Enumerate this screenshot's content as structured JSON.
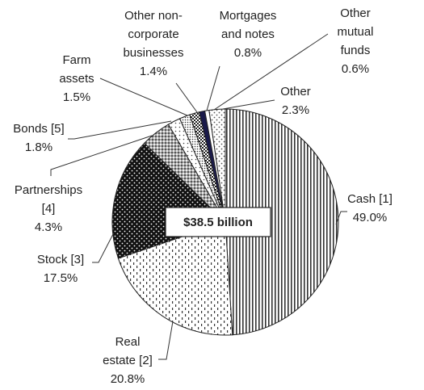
{
  "chart_data": {
    "type": "pie",
    "categories": [
      "Cash [1]",
      "Real\nestate [2]",
      "Stock [3]",
      "Partnerships\n[4]",
      "Bonds [5]",
      "Farm\nassets",
      "Other non-\ncorporate\nbusinesses",
      "Mortgages\nand notes",
      "Other\nmutual\nfunds",
      "Other"
    ],
    "values": [
      49.0,
      20.8,
      17.5,
      4.3,
      1.8,
      1.5,
      1.4,
      0.8,
      0.6,
      2.3
    ],
    "value_labels": [
      "49.0%",
      "20.8%",
      "17.5%",
      "4.3%",
      "1.8%",
      "1.5%",
      "1.4%",
      "0.8%",
      "0.6%",
      "2.3%"
    ],
    "center_label": "$38.5 billion"
  }
}
